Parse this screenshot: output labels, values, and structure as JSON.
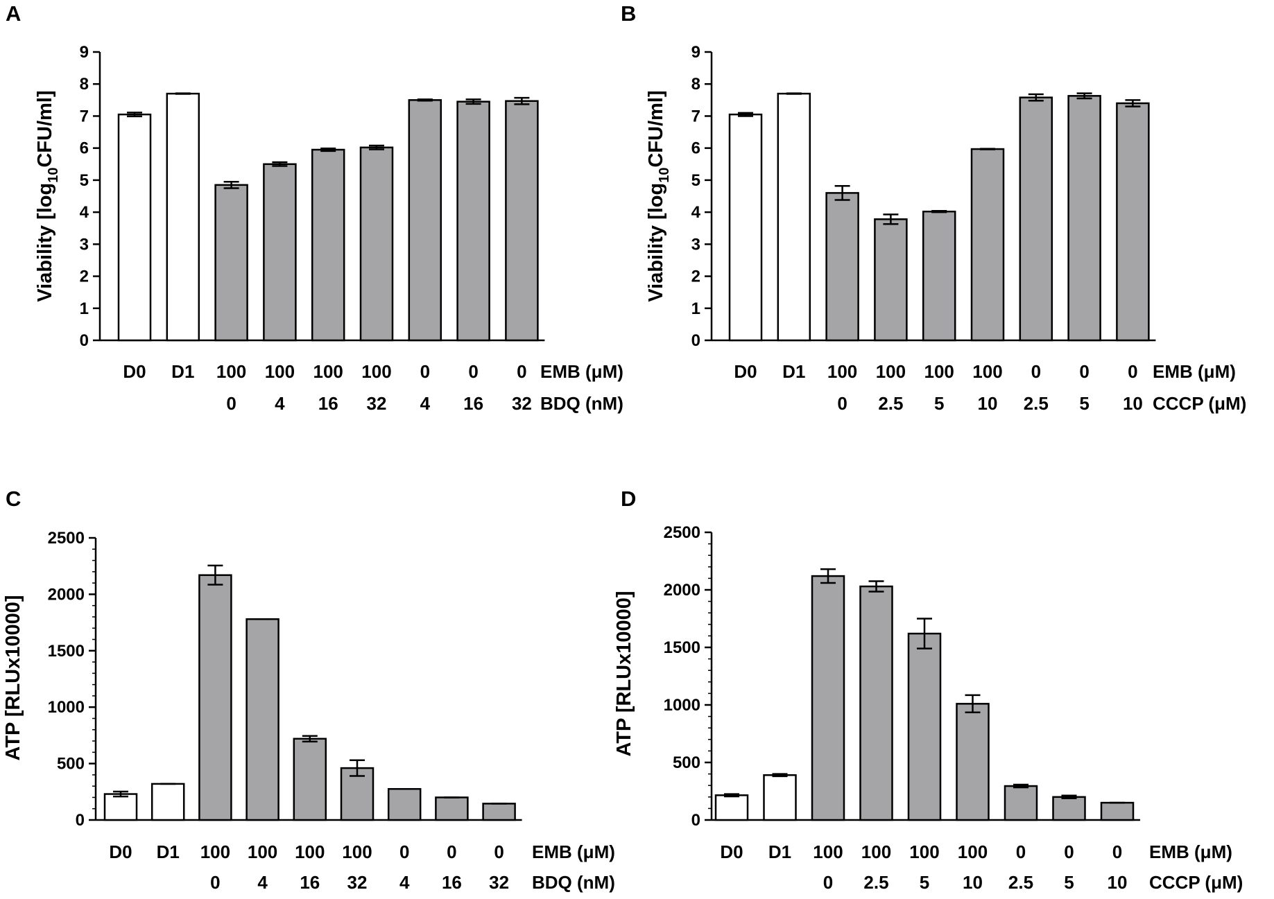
{
  "figure": {
    "colors": {
      "control_fill": "#ffffff",
      "treated_fill": "#a5a5a8",
      "stroke": "#000000"
    }
  },
  "chart_data": [
    {
      "panel": "A",
      "type": "bar",
      "ylabel_main": "Viability [log",
      "ylabel_sub": "10",
      "ylabel_tail": "CFU/ml]",
      "ylim": [
        0,
        9
      ],
      "yticks": [
        "0",
        "1",
        "2",
        "3",
        "4",
        "5",
        "6",
        "7",
        "8",
        "9"
      ],
      "categories": [
        "D0",
        "D1",
        "100/0",
        "100/4",
        "100/16",
        "100/32",
        "0/4",
        "0/16",
        "0/32"
      ],
      "row1": {
        "name": "EMB (μM)",
        "labels": [
          "D0",
          "D1",
          "100",
          "100",
          "100",
          "100",
          "0",
          "0",
          "0"
        ]
      },
      "row2": {
        "name": "BDQ (nM)",
        "labels": [
          "",
          "",
          "0",
          "4",
          "16",
          "32",
          "4",
          "16",
          "32"
        ]
      },
      "values": [
        7.05,
        7.7,
        4.85,
        5.5,
        5.95,
        6.02,
        7.5,
        7.45,
        7.47
      ],
      "errors": [
        0.06,
        0.01,
        0.1,
        0.06,
        0.04,
        0.06,
        0.02,
        0.07,
        0.1
      ],
      "groups": [
        "control",
        "control",
        "treated",
        "treated",
        "treated",
        "treated",
        "treated",
        "treated",
        "treated"
      ]
    },
    {
      "panel": "B",
      "type": "bar",
      "ylabel_main": "Viability [log",
      "ylabel_sub": "10",
      "ylabel_tail": "CFU/ml]",
      "ylim": [
        0,
        9
      ],
      "yticks": [
        "0",
        "1",
        "2",
        "3",
        "4",
        "5",
        "6",
        "7",
        "8",
        "9"
      ],
      "categories": [
        "D0",
        "D1",
        "100/0",
        "100/2.5",
        "100/5",
        "100/10",
        "0/2.5",
        "0/5",
        "0/10"
      ],
      "row1": {
        "name": "EMB (μM)",
        "labels": [
          "D0",
          "D1",
          "100",
          "100",
          "100",
          "100",
          "0",
          "0",
          "0"
        ]
      },
      "row2": {
        "name": "CCCP (μM)",
        "labels": [
          "",
          "",
          "0",
          "2.5",
          "5",
          "10",
          "2.5",
          "5",
          "10"
        ]
      },
      "values": [
        7.05,
        7.7,
        4.6,
        3.78,
        4.02,
        5.97,
        7.58,
        7.63,
        7.4
      ],
      "errors": [
        0.05,
        0.01,
        0.22,
        0.15,
        0.02,
        0.01,
        0.1,
        0.08,
        0.1
      ],
      "groups": [
        "control",
        "control",
        "treated",
        "treated",
        "treated",
        "treated",
        "treated",
        "treated",
        "treated"
      ]
    },
    {
      "panel": "C",
      "type": "bar",
      "ylabel_main": "ATP [RLUx10000]",
      "ylabel_sub": "",
      "ylabel_tail": "",
      "ylim": [
        0,
        2500
      ],
      "yticks": [
        "0",
        "500",
        "1000",
        "1500",
        "2000",
        "2500"
      ],
      "categories": [
        "D0",
        "D1",
        "100/0",
        "100/4",
        "100/16",
        "100/32",
        "0/4",
        "0/16",
        "0/32"
      ],
      "row1": {
        "name": "EMB (μM)",
        "labels": [
          "D0",
          "D1",
          "100",
          "100",
          "100",
          "100",
          "0",
          "0",
          "0"
        ]
      },
      "row2": {
        "name": "BDQ (nM)",
        "labels": [
          "",
          "",
          "0",
          "4",
          "16",
          "32",
          "4",
          "16",
          "32"
        ]
      },
      "values": [
        230,
        320,
        2170,
        1780,
        720,
        460,
        275,
        200,
        145
      ],
      "errors": [
        22,
        0,
        85,
        0,
        25,
        70,
        0,
        0,
        0
      ],
      "groups": [
        "control",
        "control",
        "treated",
        "treated",
        "treated",
        "treated",
        "treated",
        "treated",
        "treated"
      ]
    },
    {
      "panel": "D",
      "type": "bar",
      "ylabel_main": "ATP [RLUx10000]",
      "ylabel_sub": "",
      "ylabel_tail": "",
      "ylim": [
        0,
        2500
      ],
      "yticks": [
        "0",
        "500",
        "1000",
        "1500",
        "2000",
        "2500"
      ],
      "categories": [
        "D0",
        "D1",
        "100/0",
        "100/2.5",
        "100/5",
        "100/10",
        "0/2.5",
        "0/5",
        "0/10"
      ],
      "row1": {
        "name": "EMB (μM)",
        "labels": [
          "D0",
          "D1",
          "100",
          "100",
          "100",
          "100",
          "0",
          "0",
          "0"
        ]
      },
      "row2": {
        "name": "CCCP (μM)",
        "labels": [
          "",
          "",
          "0",
          "2.5",
          "5",
          "10",
          "2.5",
          "5",
          "10"
        ]
      },
      "values": [
        215,
        390,
        2120,
        2030,
        1620,
        1010,
        295,
        200,
        150
      ],
      "errors": [
        10,
        10,
        60,
        45,
        130,
        75,
        12,
        12,
        0
      ],
      "groups": [
        "control",
        "control",
        "treated",
        "treated",
        "treated",
        "treated",
        "treated",
        "treated",
        "treated"
      ]
    }
  ]
}
